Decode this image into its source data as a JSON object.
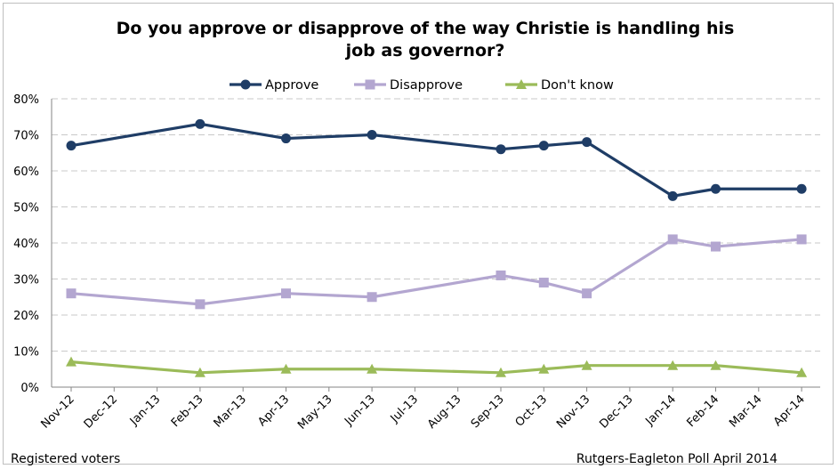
{
  "chart_data": {
    "type": "line",
    "title_line1": "Do you approve or disapprove of the way Christie is handling his",
    "title_line2": "job as governor?",
    "categories": [
      "Nov-12",
      "Dec-12",
      "Jan-13",
      "Feb-13",
      "Mar-13",
      "Apr-13",
      "May-13",
      "Jun-13",
      "Jul-13",
      "Aug-13",
      "Sep-13",
      "Oct-13",
      "Nov-13",
      "Dec-13",
      "Jan-14",
      "Feb-14",
      "Mar-14",
      "Apr-14"
    ],
    "y_ticks": [
      "0%",
      "10%",
      "20%",
      "30%",
      "40%",
      "50%",
      "60%",
      "70%",
      "80%"
    ],
    "ylim": [
      0,
      80
    ],
    "grid": true,
    "legend_position": "top",
    "series": [
      {
        "name": "Approve",
        "color": "#1f3d66",
        "marker": "circle",
        "points": [
          {
            "x": "Nov-12",
            "y": 67
          },
          {
            "x": "Feb-13",
            "y": 73
          },
          {
            "x": "Apr-13",
            "y": 69
          },
          {
            "x": "Jun-13",
            "y": 70
          },
          {
            "x": "Sep-13",
            "y": 66
          },
          {
            "x": "Oct-13",
            "y": 67
          },
          {
            "x": "Nov-13",
            "y": 68
          },
          {
            "x": "Jan-14",
            "y": 53
          },
          {
            "x": "Feb-14",
            "y": 55
          },
          {
            "x": "Apr-14",
            "y": 55
          }
        ]
      },
      {
        "name": "Disapprove",
        "color": "#b3a6d0",
        "marker": "square",
        "points": [
          {
            "x": "Nov-12",
            "y": 26
          },
          {
            "x": "Feb-13",
            "y": 23
          },
          {
            "x": "Apr-13",
            "y": 26
          },
          {
            "x": "Jun-13",
            "y": 25
          },
          {
            "x": "Sep-13",
            "y": 31
          },
          {
            "x": "Oct-13",
            "y": 29
          },
          {
            "x": "Nov-13",
            "y": 26
          },
          {
            "x": "Jan-14",
            "y": 41
          },
          {
            "x": "Feb-14",
            "y": 39
          },
          {
            "x": "Apr-14",
            "y": 41
          }
        ]
      },
      {
        "name": "Don't know",
        "color": "#9bbb59",
        "marker": "triangle",
        "points": [
          {
            "x": "Nov-12",
            "y": 7
          },
          {
            "x": "Feb-13",
            "y": 4
          },
          {
            "x": "Apr-13",
            "y": 5
          },
          {
            "x": "Jun-13",
            "y": 5
          },
          {
            "x": "Sep-13",
            "y": 4
          },
          {
            "x": "Oct-13",
            "y": 5
          },
          {
            "x": "Nov-13",
            "y": 6
          },
          {
            "x": "Jan-14",
            "y": 6
          },
          {
            "x": "Feb-14",
            "y": 6
          },
          {
            "x": "Apr-14",
            "y": 4
          }
        ]
      }
    ]
  },
  "footer": {
    "left_note": "Registered voters",
    "right_note": "Rutgers-Eagleton Poll April 2014"
  }
}
